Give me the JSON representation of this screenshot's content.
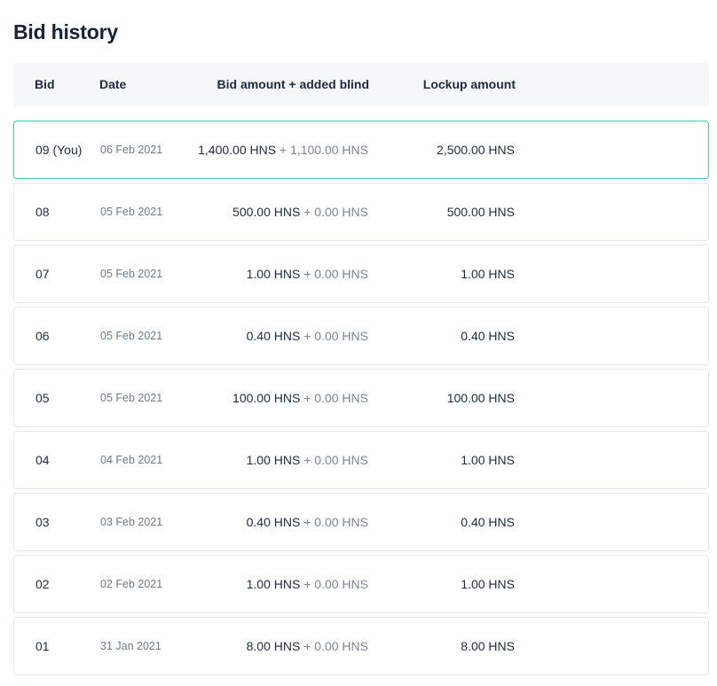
{
  "page": {
    "title": "Bid history"
  },
  "table": {
    "headers": {
      "bid": "Bid",
      "date": "Date",
      "amount": "Bid amount + added blind",
      "lockup": "Lockup amount"
    },
    "plus_sign": "+",
    "rows": [
      {
        "bid": "09 (You)",
        "date": "06 Feb 2021",
        "amount": "1,400.00 HNS",
        "blind": "1,100.00 HNS",
        "lockup": "2,500.00 HNS",
        "is_current_user": true
      },
      {
        "bid": "08",
        "date": "05 Feb 2021",
        "amount": "500.00 HNS",
        "blind": "0.00 HNS",
        "lockup": "500.00 HNS",
        "is_current_user": false
      },
      {
        "bid": "07",
        "date": "05 Feb 2021",
        "amount": "1.00 HNS",
        "blind": "0.00 HNS",
        "lockup": "1.00 HNS",
        "is_current_user": false
      },
      {
        "bid": "06",
        "date": "05 Feb 2021",
        "amount": "0.40 HNS",
        "blind": "0.00 HNS",
        "lockup": "0.40 HNS",
        "is_current_user": false
      },
      {
        "bid": "05",
        "date": "05 Feb 2021",
        "amount": "100.00 HNS",
        "blind": "0.00 HNS",
        "lockup": "100.00 HNS",
        "is_current_user": false
      },
      {
        "bid": "04",
        "date": "04 Feb 2021",
        "amount": "1.00 HNS",
        "blind": "0.00 HNS",
        "lockup": "1.00 HNS",
        "is_current_user": false
      },
      {
        "bid": "03",
        "date": "03 Feb 2021",
        "amount": "0.40 HNS",
        "blind": "0.00 HNS",
        "lockup": "0.40 HNS",
        "is_current_user": false
      },
      {
        "bid": "02",
        "date": "02 Feb 2021",
        "amount": "1.00 HNS",
        "blind": "0.00 HNS",
        "lockup": "1.00 HNS",
        "is_current_user": false
      },
      {
        "bid": "01",
        "date": "31 Jan 2021",
        "amount": "8.00 HNS",
        "blind": "0.00 HNS",
        "lockup": "8.00 HNS",
        "is_current_user": false
      }
    ]
  },
  "colors": {
    "current_user_border": "#3ccdb6",
    "row_border": "#e3e6ea",
    "header_background": "#f6f7f9",
    "text_primary": "#1c2a45",
    "text_muted": "#7a8598"
  }
}
